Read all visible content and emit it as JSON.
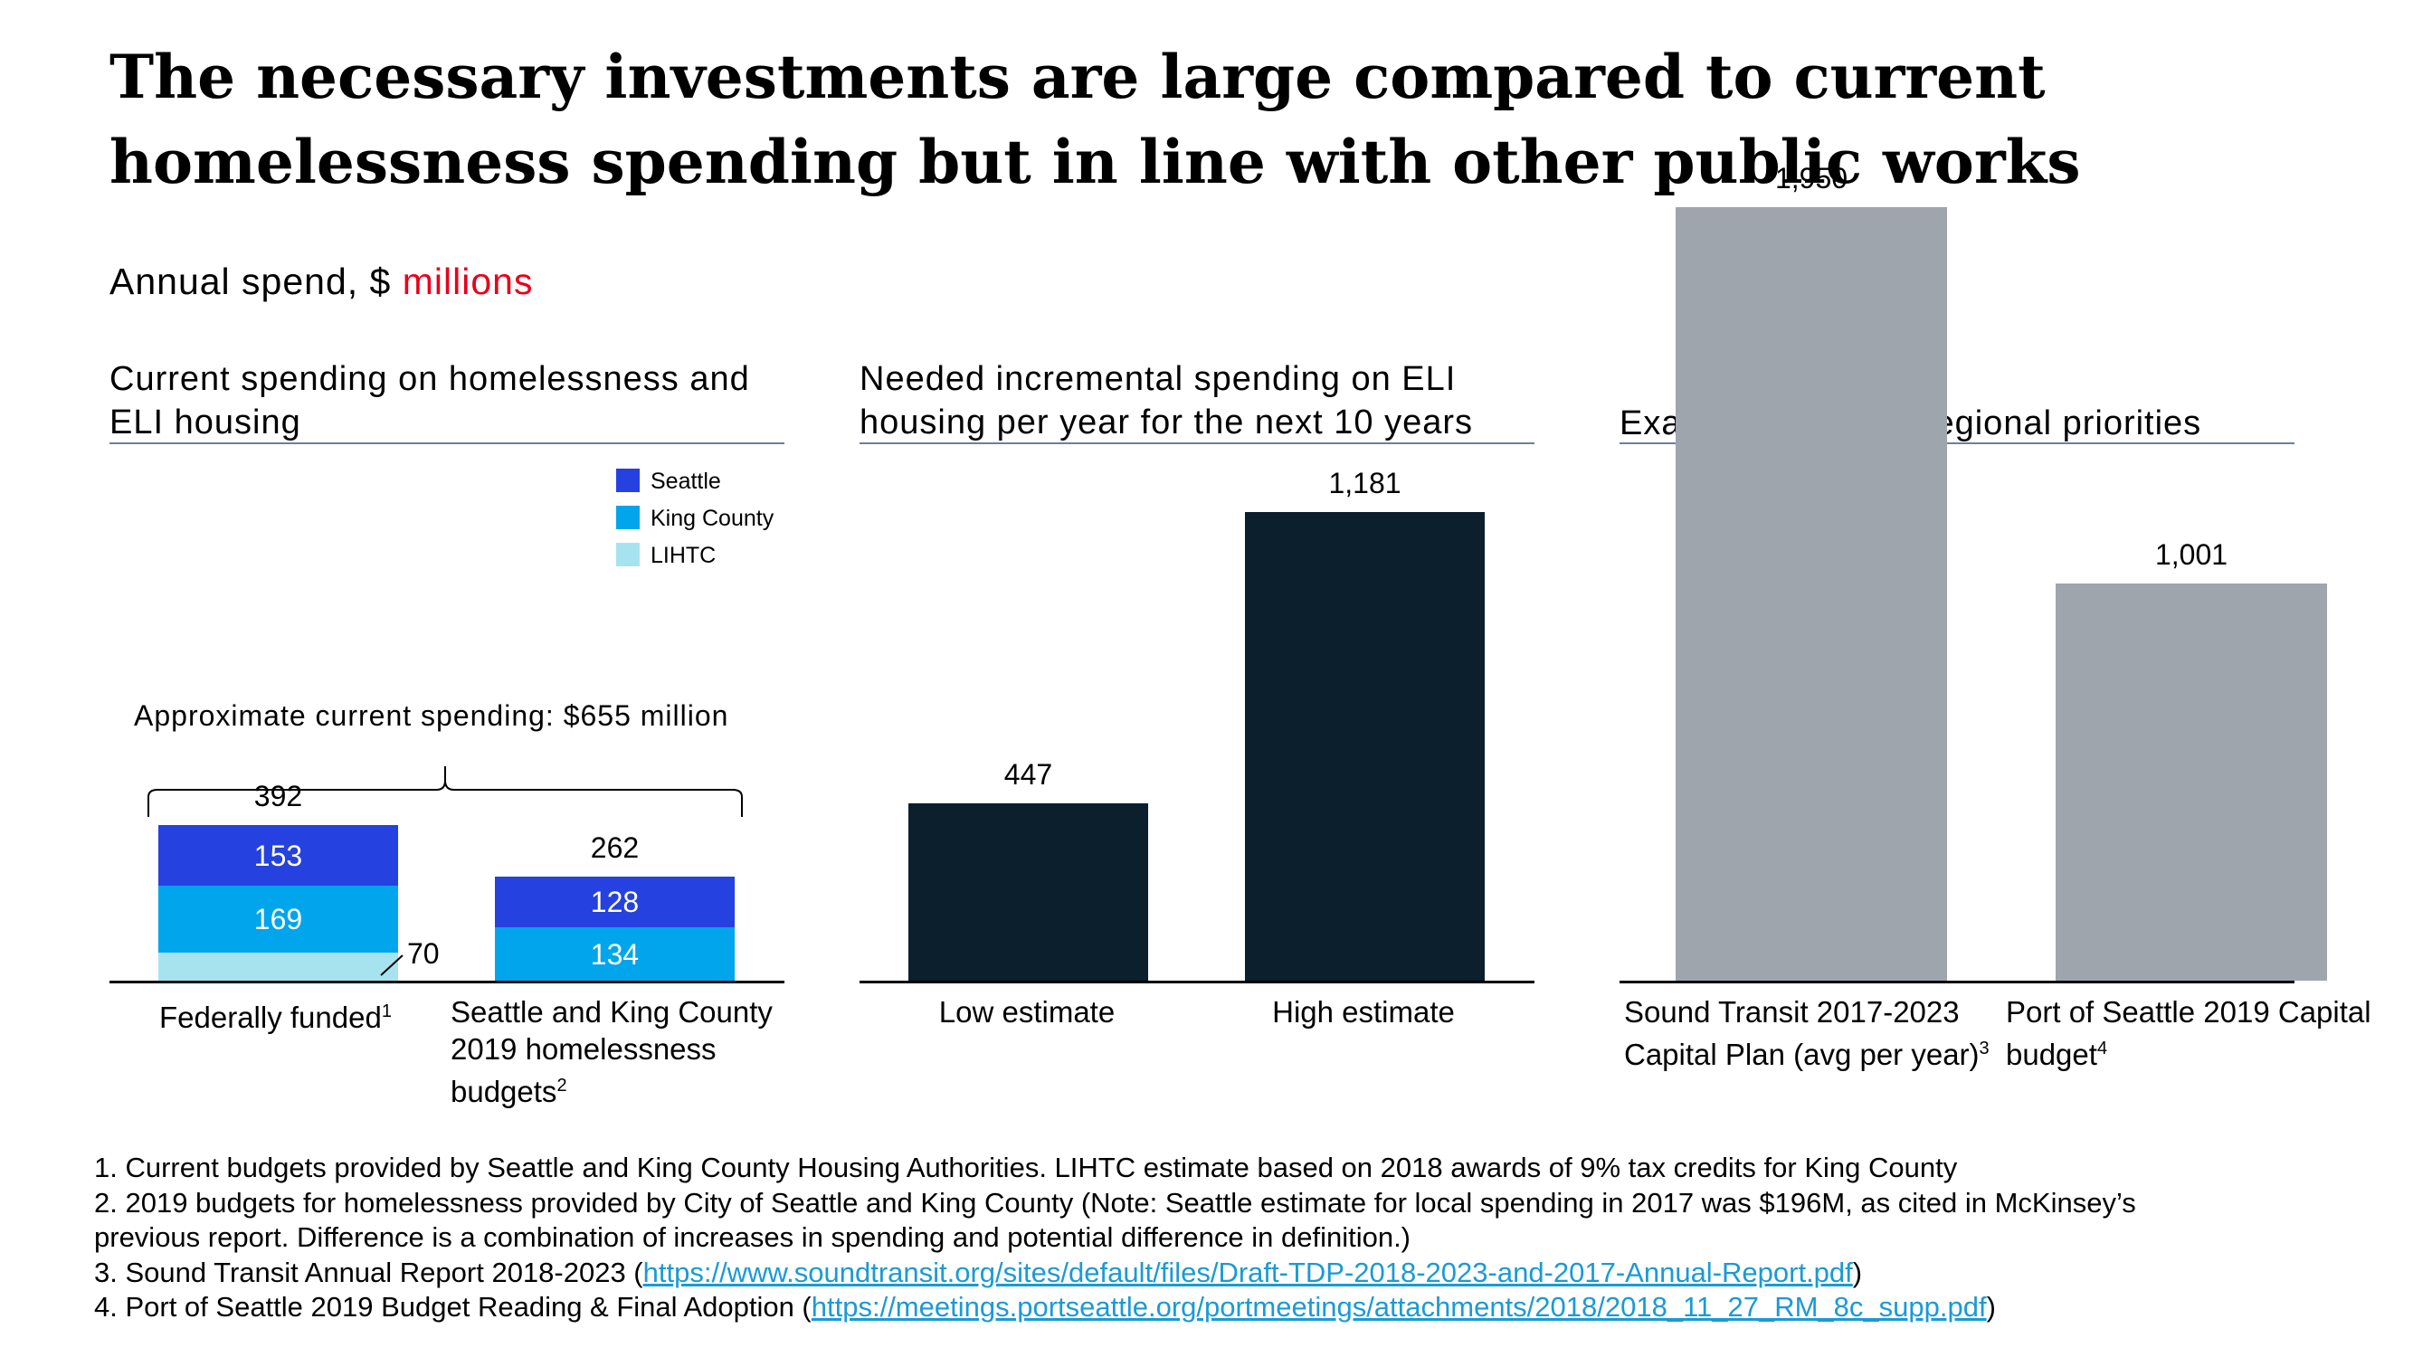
{
  "title": "The necessary investments are large compared to current homelessness spending but in line with other public works",
  "subtitle": {
    "prefix": "Annual spend, $ ",
    "unit": "millions"
  },
  "colors": {
    "seattle": "#2541e0",
    "king_county": "#00a5ec",
    "lihtc": "#a7e3ef",
    "needed": "#0b1f2d",
    "other": "#9ea5ad",
    "unit_highlight": "#e8001c",
    "link": "#1a9ad6"
  },
  "panels": {
    "current": {
      "title": "Current spending on homelessness and ELI housing"
    },
    "needed": {
      "title": "Needed incremental spending on ELI housing per year for the next 10 years"
    },
    "other": {
      "title": "Examples of other regional priorities"
    }
  },
  "legend": [
    {
      "label": "Seattle",
      "color": "#2541e0"
    },
    {
      "label": "King County",
      "color": "#00a5ec"
    },
    {
      "label": "LIHTC",
      "color": "#a7e3ef"
    }
  ],
  "annotation": {
    "brace_label": "Approximate current spending: $655 million"
  },
  "chart_data": [
    {
      "type": "bar",
      "stacked": true,
      "title": "Current spending on homelessness and ELI housing",
      "categories": [
        "Federally funded",
        "Seattle and King County 2019 homelessness budgets"
      ],
      "category_notes": [
        "1",
        "2"
      ],
      "series": [
        {
          "name": "LIHTC",
          "values": [
            70,
            0
          ]
        },
        {
          "name": "King County",
          "values": [
            169,
            134
          ]
        },
        {
          "name": "Seattle",
          "values": [
            153,
            128
          ]
        }
      ],
      "totals": [
        392,
        262
      ],
      "total_text": [
        "392",
        "262"
      ],
      "value_text": {
        "LIHTC": [
          "70",
          ""
        ],
        "King County": [
          "169",
          "134"
        ],
        "Seattle": [
          "153",
          "128"
        ]
      },
      "legend": "top-right",
      "ylim": [
        0,
        2000
      ]
    },
    {
      "type": "bar",
      "title": "Needed incremental spending on ELI housing per year for the next 10 years",
      "categories": [
        "Low estimate",
        "High estimate"
      ],
      "values": [
        447,
        1181
      ],
      "value_text": [
        "447",
        "1,181"
      ],
      "ylim": [
        0,
        2000
      ]
    },
    {
      "type": "bar",
      "title": "Examples of other regional priorities",
      "categories": [
        "Sound Transit 2017-2023 Capital Plan (avg per year)",
        "Port of Seattle 2019 Capital budget"
      ],
      "category_notes": [
        "3",
        "4"
      ],
      "values": [
        1950,
        1001
      ],
      "value_text": [
        "1,950",
        "1,001"
      ],
      "ylim": [
        0,
        2000
      ]
    }
  ],
  "footnotes": {
    "n1": "1. Current budgets provided by Seattle and King County Housing Authorities. LIHTC estimate based on 2018 awards of 9% tax credits for King County",
    "n2a": "2. 2019 budgets for homelessness provided by City of Seattle and King County (Note: Seattle estimate for local spending in 2017 was $196M, as cited in McKinsey’s",
    "n2b": "previous report. Difference is a combination of increases in spending and potential difference in definition.)",
    "n3_prefix": "3. Sound Transit Annual Report 2018-2023 (",
    "n3_link": "https://www.soundtransit.org/sites/default/files/Draft-TDP-2018-2023-and-2017-Annual-Report.pdf",
    "n3_suffix": ")",
    "n4_prefix": "4. Port of Seattle 2019 Budget Reading & Final Adoption (",
    "n4_link": "https://meetings.portseattle.org/portmeetings/attachments/2018/2018_11_27_RM_8c_supp.pdf",
    "n4_suffix": ")"
  }
}
